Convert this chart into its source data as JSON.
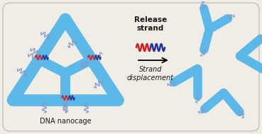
{
  "background_color": "#f0ede6",
  "border_color": "#c8c8c8",
  "blue_color": "#5bb8e8",
  "text_color": "#1a1a1a",
  "arrow_color": "#111111",
  "title": "Release\nstrand",
  "subtitle": "Strand\ndisplacement",
  "caption": "DNA nanocage",
  "fig_width": 3.69,
  "fig_height": 1.89,
  "wavy_color": "#8899cc",
  "red_color": "#cc2222",
  "darkblue_color": "#222299"
}
